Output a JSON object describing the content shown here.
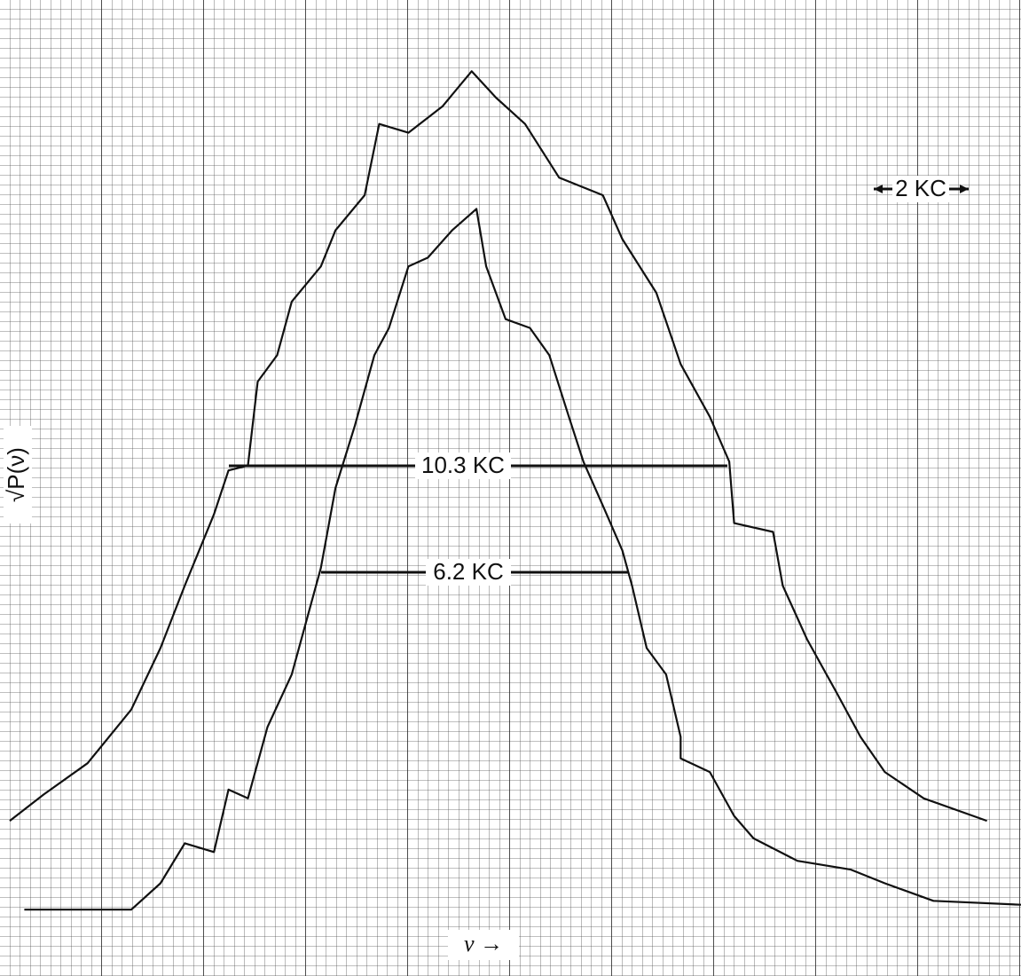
{
  "chart_data": {
    "type": "line",
    "y_label": "√P(ν)",
    "x_label": "ν →",
    "annotations": [
      "10.3 KC",
      "6.2 KC",
      "2 KC"
    ],
    "xlim": [
      0,
      21
    ],
    "ylim": [
      0,
      100
    ],
    "series": [
      {
        "color": "#111111",
        "x": [
          0.2,
          0.9,
          1.8,
          2.7,
          3.3,
          3.8,
          4.4,
          4.7,
          5.1,
          5.3,
          5.7,
          6.0,
          6.6,
          6.9,
          7.5,
          7.8,
          8.4,
          9.1,
          9.7,
          10.2,
          10.8,
          11.5,
          12.4,
          12.8,
          13.5,
          14.0,
          14.6,
          15.0,
          15.1,
          15.9,
          16.1,
          16.6,
          17.2,
          17.7,
          18.2,
          19.0,
          20.3
        ],
        "values": [
          15.9,
          18.6,
          21.8,
          27.3,
          33.6,
          40,
          47.3,
          51.8,
          52.3,
          60.9,
          63.6,
          69.1,
          72.7,
          76.4,
          80,
          87.3,
          86.4,
          89.1,
          92.7,
          90,
          87.3,
          81.8,
          80,
          75.5,
          70,
          62.7,
          57.3,
          52.7,
          46.4,
          45.5,
          40,
          34.5,
          29.1,
          24.5,
          20.9,
          18.2,
          15.9
        ]
      },
      {
        "color": "#111111",
        "x": [
          0.5,
          2.7,
          3.3,
          3.8,
          4.4,
          4.7,
          5.1,
          5.5,
          6.0,
          6.6,
          6.9,
          7.3,
          7.7,
          8.0,
          8.4,
          8.8,
          9.3,
          9.8,
          10.0,
          10.4,
          10.9,
          11.3,
          11.7,
          12.0,
          12.4,
          12.8,
          13.0,
          13.3,
          13.7,
          14.0,
          14.0,
          14.6,
          15.1,
          15.5,
          16.4,
          17.5,
          18.2,
          19.2,
          21.0
        ],
        "values": [
          6.8,
          6.8,
          9.5,
          13.6,
          12.7,
          19.1,
          18.2,
          25.5,
          30.9,
          41.8,
          50,
          56.4,
          63.6,
          66.4,
          72.7,
          73.6,
          76.4,
          78.6,
          72.7,
          67.3,
          66.4,
          63.6,
          57.3,
          52.7,
          48.2,
          43.6,
          40,
          33.6,
          30.9,
          24.5,
          22.3,
          20.9,
          16.4,
          14.1,
          11.8,
          10.9,
          9.5,
          7.7,
          7.3
        ]
      }
    ]
  }
}
